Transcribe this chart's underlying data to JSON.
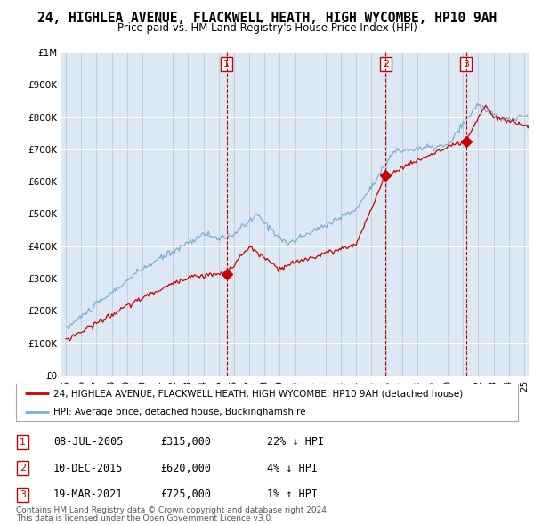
{
  "title": "24, HIGHLEA AVENUE, FLACKWELL HEATH, HIGH WYCOMBE, HP10 9AH",
  "subtitle": "Price paid vs. HM Land Registry's House Price Index (HPI)",
  "hpi_color": "#7bafd4",
  "price_color": "#cc0000",
  "bg_color": "#dce9f5",
  "ylim": [
    0,
    1000000
  ],
  "yticks": [
    0,
    100000,
    200000,
    300000,
    400000,
    500000,
    600000,
    700000,
    800000,
    900000,
    1000000
  ],
  "ytick_labels": [
    "£0",
    "£100K",
    "£200K",
    "£300K",
    "£400K",
    "£500K",
    "£600K",
    "£700K",
    "£800K",
    "£900K",
    "£1M"
  ],
  "xmin_year": 1995,
  "xmax_year": 2025,
  "xtick_years": [
    1995,
    1996,
    1997,
    1998,
    1999,
    2000,
    2001,
    2002,
    2003,
    2004,
    2005,
    2006,
    2007,
    2008,
    2009,
    2010,
    2011,
    2012,
    2013,
    2014,
    2015,
    2016,
    2017,
    2018,
    2019,
    2020,
    2021,
    2022,
    2023,
    2024,
    2025
  ],
  "sale1_x": 2005.52,
  "sale1_y": 315000,
  "sale2_x": 2015.94,
  "sale2_y": 620000,
  "sale3_x": 2021.21,
  "sale3_y": 725000,
  "legend_line1": "24, HIGHLEA AVENUE, FLACKWELL HEATH, HIGH WYCOMBE, HP10 9AH (detached house)",
  "legend_line2": "HPI: Average price, detached house, Buckinghamshire",
  "table_data": [
    {
      "num": "1",
      "date": "08-JUL-2005",
      "price": "£315,000",
      "hpi": "22% ↓ HPI"
    },
    {
      "num": "2",
      "date": "10-DEC-2015",
      "price": "£620,000",
      "hpi": "4% ↓ HPI"
    },
    {
      "num": "3",
      "date": "19-MAR-2021",
      "price": "£725,000",
      "hpi": "1% ↑ HPI"
    }
  ],
  "footer1": "Contains HM Land Registry data © Crown copyright and database right 2024.",
  "footer2": "This data is licensed under the Open Government Licence v3.0."
}
